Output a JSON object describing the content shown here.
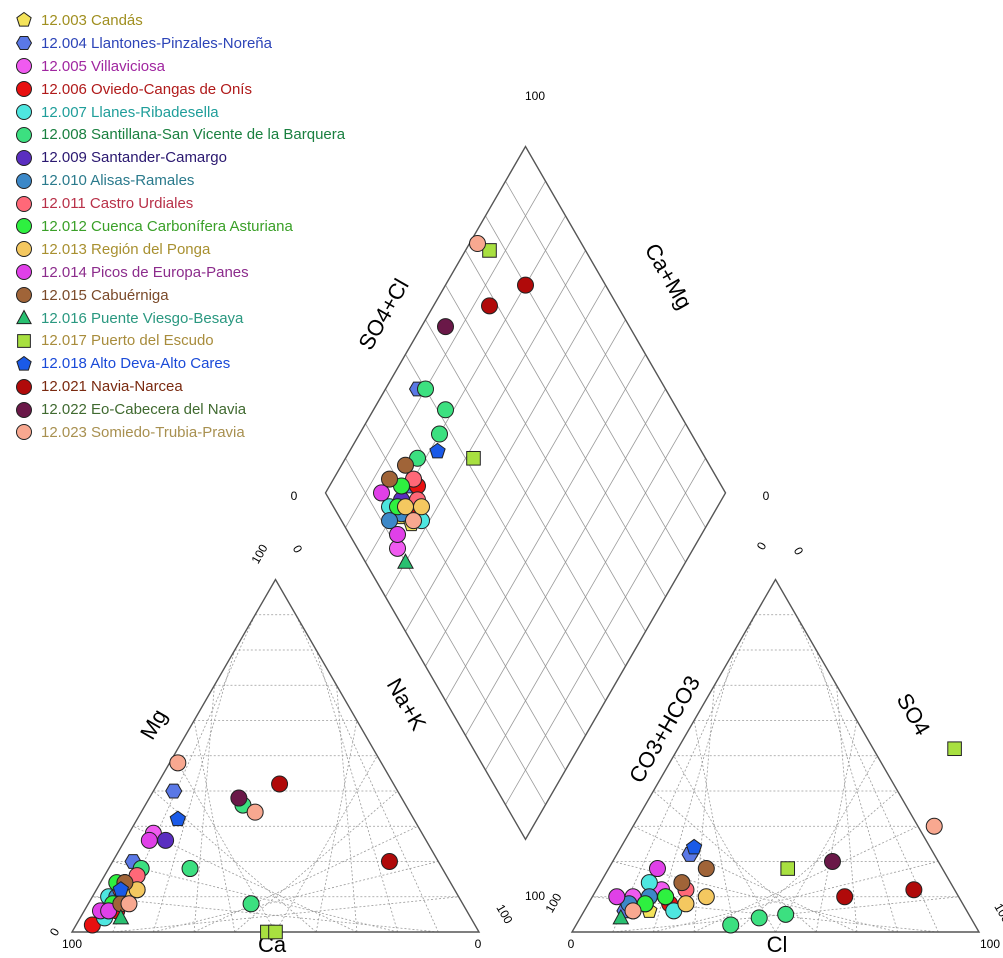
{
  "chart_data": {
    "type": "scatter",
    "subtype": "piper-diagram",
    "grid": true,
    "legend_position": "top-left",
    "axis_labels": {
      "cation_left": "Mg",
      "cation_right": "Na+K",
      "cation_bottom": "Ca",
      "anion_left": "CO3+HCO3",
      "anion_right": "SO4",
      "anion_bottom": "Cl",
      "diamond_left": "SO4+Cl",
      "diamond_right": "Ca+Mg"
    },
    "tick_labels": {
      "cation_ca_start": "100",
      "cation_ca_end": "0",
      "cation_mg_start": "0",
      "cation_mg_end": "100",
      "cation_nak_start": "0",
      "cation_nak_end": "100",
      "anion_cl_start": "0",
      "anion_cl_end": "100",
      "anion_co3_start": "100",
      "anion_co3_end": "0",
      "anion_so4_start": "0",
      "anion_so4_end": "100",
      "diamond_left": "0",
      "diamond_top": "100",
      "diamond_right": "0",
      "diamond_bottom": "100"
    },
    "series": [
      {
        "name": "12.003 Candás",
        "color": "#f4e35a",
        "label_color": "#a08f20",
        "marker": "pentagon",
        "cations": [
          [
            85,
            8
          ],
          [
            82,
            10
          ],
          [
            80,
            12
          ]
        ],
        "anions": [
          [
            12,
            8
          ],
          [
            16,
            6
          ]
        ],
        "diamond": [
          [
            15,
            78
          ],
          [
            17,
            74
          ]
        ]
      },
      {
        "name": "12.004 Llantones-Pinzales-Noreña",
        "color": "#5a78e6",
        "label_color": "#2c44b8",
        "marker": "hexagon",
        "cations": [
          [
            55,
            40
          ],
          [
            75,
            20
          ]
        ],
        "anions": [
          [
            18,
            22
          ],
          [
            10,
            6
          ]
        ],
        "diamond": [
          [
            38,
            92
          ],
          [
            22,
            80
          ]
        ]
      },
      {
        "name": "12.005 Villaviciosa",
        "color": "#f05af0",
        "label_color": "#a026a0",
        "marker": "circle",
        "cations": [
          [
            66,
            28
          ],
          [
            88,
            6
          ],
          [
            84,
            9
          ]
        ],
        "anions": [
          [
            10,
            10
          ],
          [
            16,
            12
          ]
        ],
        "diamond": [
          [
            14,
            80
          ],
          [
            10,
            74
          ]
        ]
      },
      {
        "name": "12.006 Oviedo-Cangas de Onís",
        "color": "#e81010",
        "label_color": "#b01a1a",
        "marker": "circle",
        "cations": [
          [
            94,
            2
          ],
          [
            86,
            6
          ]
        ],
        "anions": [
          [
            12,
            6
          ],
          [
            20,
            8
          ]
        ],
        "diamond": [
          [
            20,
            76
          ],
          [
            24,
            78
          ]
        ]
      },
      {
        "name": "12.007 Llanes-Ribadesella",
        "color": "#4ee6e0",
        "label_color": "#1f9e9a",
        "marker": "circle",
        "cations": [
          [
            80,
            14
          ],
          [
            86,
            10
          ],
          [
            90,
            4
          ]
        ],
        "anions": [
          [
            12,
            14
          ],
          [
            22,
            6
          ]
        ],
        "diamond": [
          [
            20,
            72
          ],
          [
            14,
            82
          ]
        ]
      },
      {
        "name": "12.008 Santillana-San Vicente de la Barquera",
        "color": "#3ce080",
        "label_color": "#1a8040",
        "marker": "circle",
        "cations": [
          [
            40,
            36
          ],
          [
            62,
            18
          ],
          [
            52,
            8
          ],
          [
            74,
            18
          ]
        ],
        "anions": [
          [
            38,
            2
          ],
          [
            44,
            4
          ],
          [
            50,
            5
          ]
        ],
        "diamond": [
          [
            40,
            90
          ],
          [
            28,
            82
          ],
          [
            37,
            80
          ],
          [
            42,
            82
          ]
        ]
      },
      {
        "name": "12.009 Santander-Camargo",
        "color": "#5a2ec0",
        "label_color": "#2a1870",
        "marker": "circle",
        "cations": [
          [
            64,
            26
          ],
          [
            80,
            14
          ]
        ],
        "anions": [
          [
            14,
            8
          ]
        ],
        "diamond": [
          [
            18,
            80
          ]
        ]
      },
      {
        "name": "12.010 Alisas-Ramales",
        "color": "#3c88c8",
        "label_color": "#2a7a8c",
        "marker": "circle",
        "cations": [
          [
            78,
            12
          ],
          [
            84,
            10
          ]
        ],
        "anions": [
          [
            14,
            10
          ],
          [
            10,
            8
          ]
        ],
        "diamond": [
          [
            16,
            78
          ],
          [
            12,
            80
          ]
        ]
      },
      {
        "name": "12.011 Castro Urdiales",
        "color": "#ff6878",
        "label_color": "#b83048",
        "marker": "circle",
        "cations": [
          [
            76,
            16
          ],
          [
            82,
            12
          ]
        ],
        "anions": [
          [
            18,
            10
          ],
          [
            22,
            12
          ]
        ],
        "diamond": [
          [
            24,
            80
          ],
          [
            22,
            76
          ]
        ]
      },
      {
        "name": "12.012 Cuenca Carbonífera Asturiana",
        "color": "#2ef040",
        "label_color": "#3aa028",
        "marker": "circle",
        "cations": [
          [
            86,
            8
          ],
          [
            82,
            14
          ],
          [
            88,
            6
          ]
        ],
        "anions": [
          [
            14,
            8
          ],
          [
            18,
            10
          ]
        ],
        "diamond": [
          [
            16,
            80
          ],
          [
            20,
            82
          ]
        ]
      },
      {
        "name": "12.013 Región del Ponga",
        "color": "#f4c860",
        "label_color": "#a89030",
        "marker": "circle",
        "cations": [
          [
            82,
            10
          ],
          [
            78,
            12
          ]
        ],
        "anions": [
          [
            24,
            8
          ],
          [
            28,
            10
          ]
        ],
        "diamond": [
          [
            18,
            78
          ],
          [
            22,
            74
          ]
        ]
      },
      {
        "name": "12.014 Picos de Europa-Panes",
        "color": "#e040e8",
        "label_color": "#8c2c8c",
        "marker": "circle",
        "cations": [
          [
            90,
            6
          ],
          [
            68,
            26
          ],
          [
            88,
            6
          ]
        ],
        "anions": [
          [
            6,
            10
          ],
          [
            12,
            18
          ]
        ],
        "diamond": [
          [
            12,
            76
          ],
          [
            14,
            86
          ]
        ]
      },
      {
        "name": "12.015 Cabuérniga",
        "color": "#a06438",
        "label_color": "#7a4a2a",
        "marker": "circle",
        "cations": [
          [
            84,
            8
          ],
          [
            80,
            14
          ]
        ],
        "anions": [
          [
            24,
            18
          ],
          [
            20,
            14
          ]
        ],
        "diamond": [
          [
            24,
            84
          ],
          [
            18,
            86
          ]
        ]
      },
      {
        "name": "12.016 Puente Viesgo-Besaya",
        "color": "#28c070",
        "label_color": "#2a9880",
        "marker": "triangle",
        "cations": [
          [
            86,
            4
          ]
        ],
        "anions": [
          [
            10,
            4
          ]
        ],
        "diamond": [
          [
            10,
            70
          ]
        ]
      },
      {
        "name": "12.017 Puerto del Escudo",
        "color": "#a8e040",
        "label_color": "#a88c3c",
        "marker": "square",
        "cations": [
          [
            52,
            0
          ],
          [
            50,
            0
          ]
        ],
        "anions": [
          [
            44,
            18
          ],
          [
            68,
            52
          ]
        ],
        "diamond": [
          [
            42,
            68
          ],
          [
            76,
            94
          ]
        ]
      },
      {
        "name": "12.018 Alto Deva-Alto Cares",
        "color": "#1a5ae8",
        "label_color": "#1a4ad8",
        "marker": "pentagon",
        "cations": [
          [
            58,
            32
          ],
          [
            82,
            12
          ]
        ],
        "anions": [
          [
            18,
            24
          ]
        ],
        "diamond": [
          [
            34,
            78
          ]
        ]
      },
      {
        "name": "12.021 Navia-Narcea",
        "color": "#b00a0a",
        "label_color": "#7a2a10",
        "marker": "circle",
        "cations": [
          [
            28,
            42
          ],
          [
            12,
            20
          ]
        ],
        "anions": [
          [
            62,
            10
          ],
          [
            78,
            12
          ]
        ],
        "diamond": [
          [
            68,
            86
          ],
          [
            80,
            80
          ]
        ]
      },
      {
        "name": "12.022 Eo-Cabecera del Navia",
        "color": "#6a1848",
        "label_color": "#406a30",
        "marker": "circle",
        "cations": [
          [
            40,
            38
          ]
        ],
        "anions": [
          [
            54,
            20
          ]
        ],
        "diamond": [
          [
            54,
            94
          ]
        ]
      },
      {
        "name": "12.023 Somiedo-Trubia-Pravia",
        "color": "#f8a890",
        "label_color": "#a89050",
        "marker": "circle",
        "cations": [
          [
            50,
            48
          ],
          [
            38,
            34
          ],
          [
            82,
            8
          ]
        ],
        "anions": [
          [
            74,
            30
          ],
          [
            12,
            6
          ]
        ],
        "diamond": [
          [
            74,
            98
          ],
          [
            18,
            74
          ]
        ]
      }
    ]
  }
}
